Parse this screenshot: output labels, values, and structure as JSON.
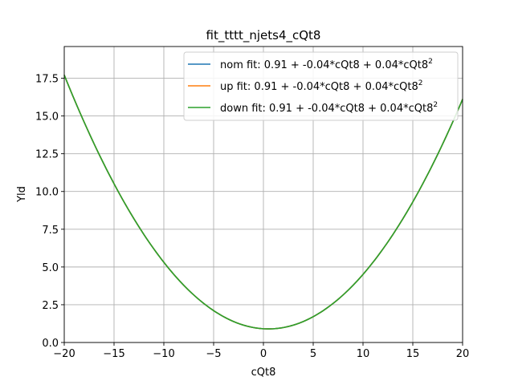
{
  "chart_data": {
    "type": "line",
    "title": "fit_tttt_njets4_cQt8",
    "xlabel": "cQt8",
    "ylabel": "Yld",
    "xlim": [
      -20,
      20
    ],
    "ylim": [
      0,
      19.6
    ],
    "xticks": [
      -20,
      -15,
      -10,
      -5,
      0,
      5,
      10,
      15,
      20
    ],
    "xtick_labels": [
      "−20",
      "−15",
      "−10",
      "−5",
      "0",
      "5",
      "10",
      "15",
      "20"
    ],
    "yticks": [
      0,
      2.5,
      5,
      7.5,
      10,
      12.5,
      15,
      17.5
    ],
    "ytick_labels": [
      "0.0",
      "2.5",
      "5.0",
      "7.5",
      "10.0",
      "12.5",
      "15.0",
      "17.5"
    ],
    "grid": true,
    "legend_position": "top-right",
    "series": [
      {
        "name": "nom fit: 0.91 + -0.04*cQt8 + 0.04*cQt8",
        "superscript": "2",
        "color": "#1f77b4",
        "coefficients": [
          0.91,
          -0.04,
          0.04
        ]
      },
      {
        "name": "up fit: 0.91 + -0.04*cQt8 + 0.04*cQt8",
        "superscript": "2",
        "color": "#ff7f0e",
        "coefficients": [
          0.91,
          -0.04,
          0.04
        ]
      },
      {
        "name": "down fit: 0.91 + -0.04*cQt8 + 0.04*cQt8",
        "superscript": "2",
        "color": "#2ca02c",
        "coefficients": [
          0.91,
          -0.04,
          0.04
        ]
      }
    ]
  }
}
